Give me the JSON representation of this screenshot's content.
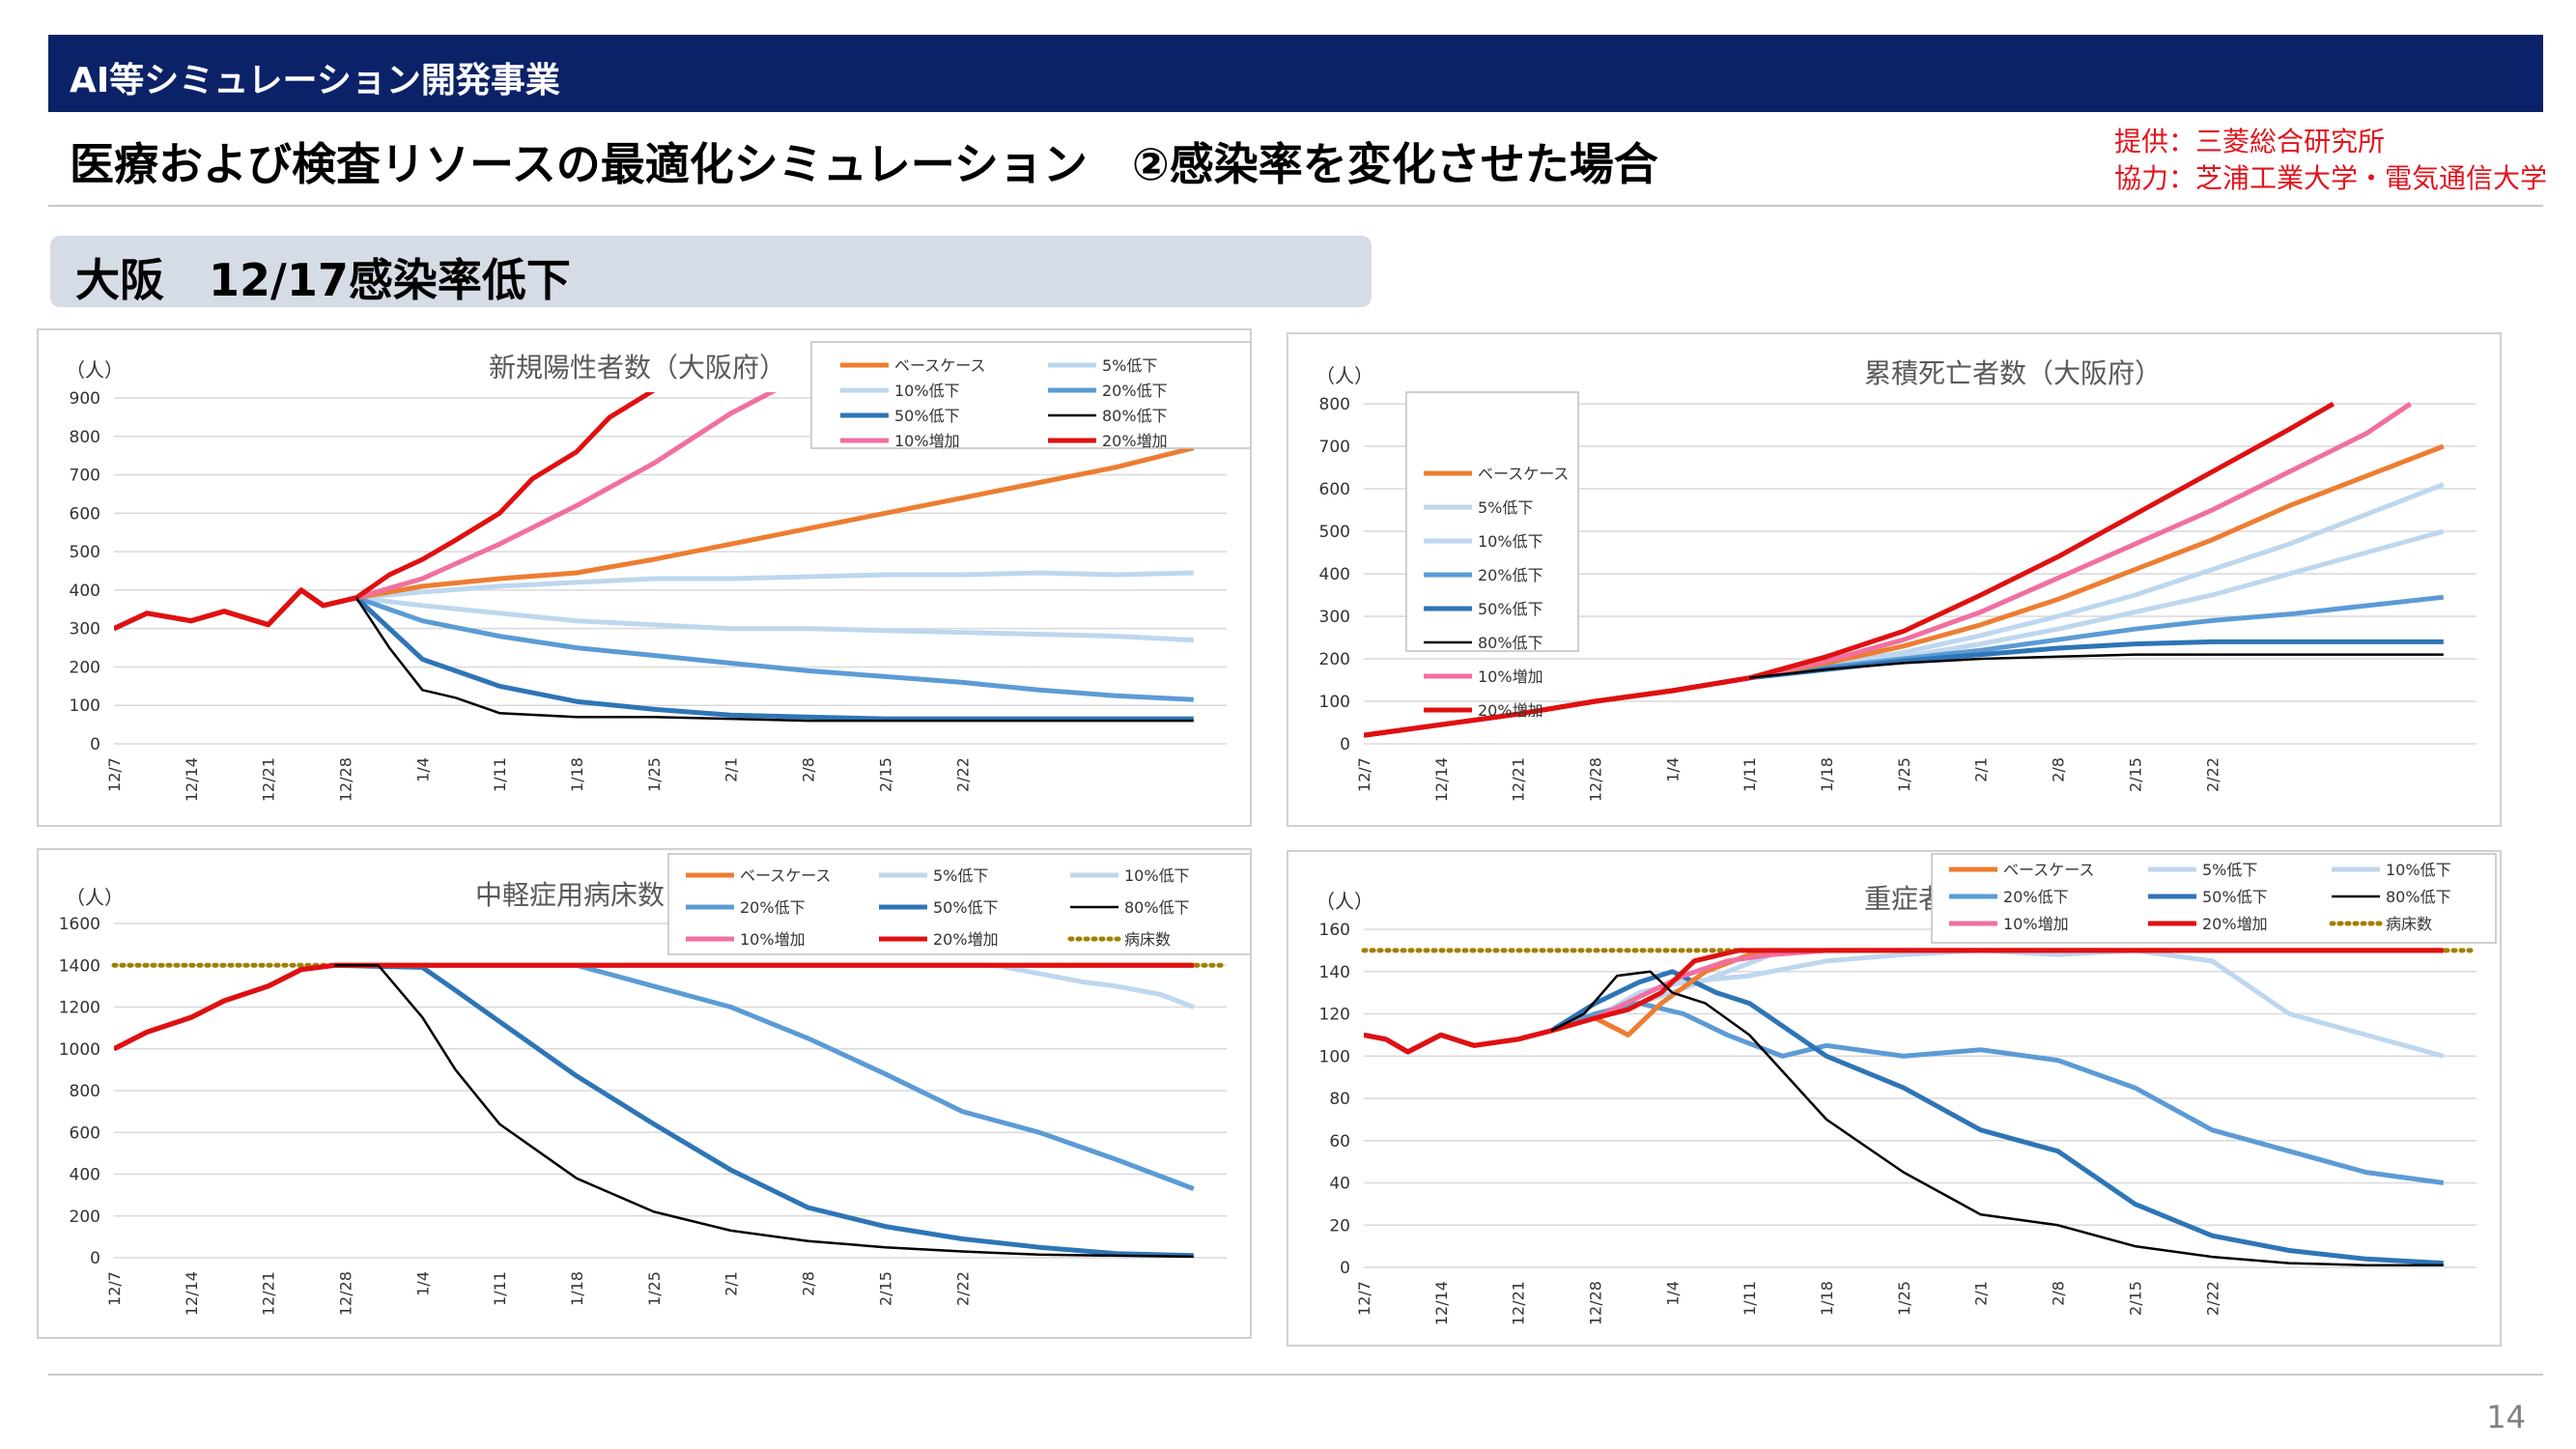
{
  "header": {
    "banner": "AI等シミュレーション開発事業",
    "title": "医療および検査リソースの最適化シミュレーション　②感染率を変化させた場合",
    "provider_line1": "提供：三菱総合研究所",
    "provider_line2": "協力：芝浦工業大学・電気通信大学",
    "section": "大阪　12/17感染率低下",
    "page_number": "14"
  },
  "colors": {
    "banner": "#0b2268",
    "provider_text": "#e2141c",
    "section_bg": "#d6dce5",
    "base": "#ed7d31",
    "p5": "#bdd7ee",
    "p10": "#bdd7ee",
    "p20": "#5b9bd5",
    "p50": "#2e75b6",
    "p80": "#000000",
    "inc10": "#f16fa0",
    "inc20": "#e01010",
    "beds": "#a08000"
  },
  "chart_data": [
    {
      "id": "new_cases",
      "type": "line",
      "title": "新規陽性者数（大阪府）",
      "unit_label": "（人）",
      "ylim": [
        0,
        900
      ],
      "yticks": [
        0,
        100,
        200,
        300,
        400,
        500,
        600,
        700,
        800,
        900
      ],
      "x_tick_labels": [
        "12/7",
        "12/14",
        "12/21",
        "12/28",
        "1/4",
        "1/11",
        "1/18",
        "1/25",
        "2/1",
        "2/8",
        "2/15",
        "2/22"
      ],
      "legend_rows": [
        [
          "ベースケース",
          "5%低下"
        ],
        [
          "10%低下",
          "20%低下"
        ],
        [
          "50%低下",
          "80%低下"
        ],
        [
          "10%増加",
          "20%増加"
        ]
      ],
      "series_anchor_days": [
        0,
        3,
        7,
        10,
        14,
        17,
        19,
        22
      ],
      "series_history": [
        300,
        340,
        320,
        345,
        310,
        400,
        360,
        380
      ],
      "series": [
        {
          "name": "ベースケース",
          "key": "base",
          "days": [
            22,
            28,
            35,
            42,
            49,
            56,
            63,
            70,
            77,
            84,
            91,
            98
          ],
          "values": [
            380,
            410,
            430,
            445,
            480,
            520,
            560,
            600,
            640,
            680,
            720,
            770
          ]
        },
        {
          "name": "5%低下",
          "key": "p5",
          "days": [
            22,
            28,
            35,
            42,
            49,
            56,
            63,
            70,
            77,
            84,
            91,
            98
          ],
          "values": [
            380,
            395,
            410,
            420,
            430,
            430,
            435,
            440,
            440,
            445,
            440,
            445
          ]
        },
        {
          "name": "10%低下",
          "key": "p10",
          "days": [
            22,
            28,
            35,
            42,
            49,
            56,
            63,
            70,
            77,
            84,
            91,
            98
          ],
          "values": [
            370,
            360,
            340,
            320,
            310,
            300,
            300,
            295,
            290,
            285,
            280,
            270
          ]
        },
        {
          "name": "20%低下",
          "key": "p20",
          "days": [
            22,
            28,
            35,
            42,
            49,
            56,
            63,
            70,
            77,
            84,
            91,
            98
          ],
          "values": [
            360,
            320,
            280,
            250,
            230,
            210,
            190,
            175,
            160,
            140,
            125,
            115
          ]
        },
        {
          "name": "50%低下",
          "key": "p50",
          "days": [
            22,
            28,
            35,
            42,
            49,
            56,
            63,
            70,
            77,
            84,
            91,
            98
          ],
          "values": [
            350,
            220,
            150,
            110,
            90,
            75,
            70,
            65,
            65,
            65,
            65,
            65
          ]
        },
        {
          "name": "80%低下",
          "key": "p80",
          "days": [
            22,
            25,
            28,
            31,
            35,
            42,
            49,
            56,
            63,
            70,
            77,
            84,
            91,
            98
          ],
          "values": [
            350,
            250,
            140,
            120,
            80,
            70,
            70,
            65,
            60,
            60,
            60,
            60,
            60,
            60
          ]
        },
        {
          "name": "10%増加",
          "key": "inc10",
          "days": [
            22,
            28,
            35,
            42,
            49,
            56,
            60
          ],
          "values": [
            380,
            430,
            520,
            620,
            730,
            860,
            920
          ]
        },
        {
          "name": "20%増加",
          "key": "inc20",
          "days": [
            22,
            25,
            28,
            31,
            35,
            38,
            42,
            45,
            49
          ],
          "values": [
            380,
            440,
            480,
            530,
            600,
            690,
            760,
            850,
            920
          ]
        }
      ]
    },
    {
      "id": "deaths",
      "type": "line",
      "title": "累積死亡者数（大阪府）",
      "unit_label": "（人）",
      "ylim": [
        0,
        800
      ],
      "yticks": [
        0,
        100,
        200,
        300,
        400,
        500,
        600,
        700,
        800
      ],
      "x_tick_labels": [
        "12/7",
        "12/14",
        "12/21",
        "12/28",
        "1/4",
        "1/11",
        "1/18",
        "1/25",
        "2/1",
        "2/8",
        "2/15",
        "2/22"
      ],
      "legend_rows": [
        [
          "ベースケース"
        ],
        [
          "5%低下"
        ],
        [
          "10%低下"
        ],
        [
          "20%低下"
        ],
        [
          "50%低下"
        ],
        [
          "80%低下"
        ],
        [
          "10%増加"
        ],
        [
          "20%増加"
        ]
      ],
      "series_anchor_days": [
        0,
        7,
        14,
        21,
        28,
        35
      ],
      "series_history": [
        20,
        45,
        70,
        100,
        125,
        155
      ],
      "series": [
        {
          "name": "ベースケース",
          "key": "base",
          "days": [
            35,
            42,
            49,
            56,
            63,
            70,
            77,
            84,
            91,
            98
          ],
          "values": [
            155,
            190,
            230,
            280,
            340,
            410,
            480,
            560,
            630,
            700
          ]
        },
        {
          "name": "5%低下",
          "key": "p5",
          "days": [
            35,
            42,
            49,
            56,
            63,
            70,
            77,
            84,
            91,
            98
          ],
          "values": [
            155,
            185,
            215,
            255,
            300,
            350,
            410,
            470,
            540,
            610
          ]
        },
        {
          "name": "10%低下",
          "key": "p10",
          "days": [
            35,
            42,
            49,
            56,
            63,
            70,
            77,
            84,
            91,
            98
          ],
          "values": [
            155,
            180,
            205,
            235,
            270,
            310,
            350,
            400,
            450,
            500
          ]
        },
        {
          "name": "20%低下",
          "key": "p20",
          "days": [
            35,
            42,
            49,
            56,
            63,
            70,
            77,
            84,
            91,
            98
          ],
          "values": [
            155,
            180,
            200,
            220,
            245,
            270,
            290,
            305,
            325,
            345
          ]
        },
        {
          "name": "50%低下",
          "key": "p50",
          "days": [
            35,
            42,
            49,
            56,
            63,
            70,
            77,
            84,
            91,
            98
          ],
          "values": [
            155,
            175,
            195,
            210,
            225,
            235,
            240,
            240,
            240,
            240
          ]
        },
        {
          "name": "80%低下",
          "key": "p80",
          "days": [
            35,
            42,
            49,
            56,
            63,
            70,
            77,
            84,
            91,
            98
          ],
          "values": [
            155,
            175,
            190,
            200,
            205,
            210,
            210,
            210,
            210,
            210
          ]
        },
        {
          "name": "10%増加",
          "key": "inc10",
          "days": [
            35,
            42,
            49,
            56,
            63,
            70,
            77,
            84,
            91,
            95
          ],
          "values": [
            155,
            195,
            245,
            310,
            390,
            470,
            550,
            640,
            730,
            800
          ]
        },
        {
          "name": "20%増加",
          "key": "inc20",
          "days": [
            35,
            42,
            49,
            56,
            63,
            70,
            77,
            84,
            88
          ],
          "values": [
            155,
            205,
            265,
            350,
            440,
            540,
            640,
            740,
            800
          ]
        }
      ]
    },
    {
      "id": "mild_beds",
      "type": "line",
      "title": "中軽症用病床数（大阪府）",
      "unit_label": "（人）",
      "ylim": [
        0,
        1600
      ],
      "yticks": [
        0,
        200,
        400,
        600,
        800,
        1000,
        1200,
        1400,
        1600
      ],
      "x_tick_labels": [
        "12/7",
        "12/14",
        "12/21",
        "12/28",
        "1/4",
        "1/11",
        "1/18",
        "1/25",
        "2/1",
        "2/8",
        "2/15",
        "2/22"
      ],
      "legend_rows": [
        [
          "ベースケース",
          "5%低下",
          "10%低下"
        ],
        [
          "20%低下",
          "50%低下",
          "80%低下"
        ],
        [
          "10%増加",
          "20%増加",
          "病床数"
        ]
      ],
      "bed_capacity": 1400,
      "series_anchor_days": [
        0,
        3,
        7,
        10,
        14,
        17,
        20
      ],
      "series_history": [
        1000,
        1080,
        1150,
        1230,
        1300,
        1380,
        1400
      ],
      "series": [
        {
          "name": "ベースケース",
          "key": "base",
          "days": [
            20,
            98
          ],
          "values": [
            1400,
            1400
          ]
        },
        {
          "name": "5%低下",
          "key": "p5",
          "days": [
            20,
            98
          ],
          "values": [
            1400,
            1400
          ]
        },
        {
          "name": "10%低下",
          "key": "p10",
          "days": [
            20,
            80,
            84,
            88,
            91,
            95,
            98
          ],
          "values": [
            1400,
            1400,
            1360,
            1320,
            1300,
            1260,
            1200
          ]
        },
        {
          "name": "20%低下",
          "key": "p20",
          "days": [
            20,
            42,
            49,
            56,
            63,
            70,
            77,
            84,
            91,
            98
          ],
          "values": [
            1400,
            1400,
            1300,
            1200,
            1050,
            880,
            700,
            600,
            470,
            330
          ]
        },
        {
          "name": "50%低下",
          "key": "p50",
          "days": [
            20,
            28,
            31,
            35,
            42,
            49,
            56,
            63,
            70,
            77,
            84,
            91,
            98
          ],
          "values": [
            1400,
            1390,
            1280,
            1130,
            870,
            640,
            420,
            240,
            150,
            90,
            50,
            20,
            10
          ]
        },
        {
          "name": "80%低下",
          "key": "p80",
          "days": [
            20,
            24,
            28,
            31,
            35,
            42,
            49,
            56,
            63,
            70,
            77,
            84,
            98
          ],
          "values": [
            1400,
            1400,
            1150,
            900,
            640,
            380,
            220,
            130,
            80,
            50,
            30,
            15,
            5
          ]
        },
        {
          "name": "10%増加",
          "key": "inc10",
          "days": [
            20,
            98
          ],
          "values": [
            1400,
            1400
          ]
        },
        {
          "name": "20%増加",
          "key": "inc20",
          "days": [
            20,
            98
          ],
          "values": [
            1400,
            1400
          ]
        }
      ]
    },
    {
      "id": "severe_beds",
      "type": "line",
      "title": "重症者病床数（大阪府）",
      "unit_label": "（人）",
      "ylim": [
        0,
        160
      ],
      "yticks": [
        0,
        20,
        40,
        60,
        80,
        100,
        120,
        140,
        160
      ],
      "x_tick_labels": [
        "12/7",
        "12/14",
        "12/21",
        "12/28",
        "1/4",
        "1/11",
        "1/18",
        "1/25",
        "2/1",
        "2/8",
        "2/15",
        "2/22"
      ],
      "legend_rows": [
        [
          "ベースケース",
          "5%低下",
          "10%低下"
        ],
        [
          "20%低下",
          "50%低下",
          "80%低下"
        ],
        [
          "10%増加",
          "20%増加",
          "病床数"
        ]
      ],
      "bed_capacity": 150,
      "series_anchor_days": [
        0,
        2,
        4,
        7,
        10,
        14,
        17
      ],
      "series_history": [
        110,
        108,
        102,
        110,
        105,
        108,
        112
      ],
      "series": [
        {
          "name": "ベースケース",
          "key": "base",
          "days": [
            17,
            21,
            24,
            27,
            31,
            35,
            42,
            98
          ],
          "values": [
            112,
            118,
            110,
            125,
            140,
            148,
            150,
            150
          ]
        },
        {
          "name": "5%低下",
          "key": "p5",
          "days": [
            17,
            21,
            25,
            29,
            33,
            37,
            42,
            98
          ],
          "values": [
            112,
            120,
            125,
            132,
            140,
            148,
            150,
            150
          ]
        },
        {
          "name": "10%低下",
          "key": "p10",
          "days": [
            17,
            21,
            25,
            29,
            35,
            42,
            49,
            56,
            63,
            70,
            77,
            84,
            91,
            98
          ],
          "values": [
            112,
            118,
            130,
            135,
            138,
            145,
            148,
            150,
            148,
            150,
            145,
            120,
            110,
            100
          ]
        },
        {
          "name": "20%低下",
          "key": "p20",
          "days": [
            17,
            21,
            25,
            29,
            33,
            38,
            42,
            49,
            56,
            63,
            70,
            77,
            84,
            91,
            98
          ],
          "values": [
            112,
            120,
            125,
            120,
            110,
            100,
            105,
            100,
            103,
            98,
            85,
            65,
            55,
            45,
            40
          ]
        },
        {
          "name": "50%低下",
          "key": "p50",
          "days": [
            17,
            21,
            25,
            28,
            32,
            35,
            42,
            49,
            56,
            63,
            70,
            77,
            84,
            91,
            98
          ],
          "values": [
            112,
            125,
            135,
            140,
            130,
            125,
            100,
            85,
            65,
            55,
            30,
            15,
            8,
            4,
            2
          ]
        },
        {
          "name": "80%低下",
          "key": "p80",
          "days": [
            17,
            20,
            23,
            26,
            28,
            31,
            35,
            42,
            49,
            56,
            63,
            70,
            77,
            84,
            91,
            98
          ],
          "values": [
            112,
            120,
            138,
            140,
            130,
            125,
            110,
            70,
            45,
            25,
            20,
            10,
            5,
            2,
            1,
            1
          ]
        },
        {
          "name": "10%増加",
          "key": "inc10",
          "days": [
            17,
            21,
            25,
            29,
            33,
            37,
            42,
            98
          ],
          "values": [
            112,
            118,
            128,
            138,
            145,
            148,
            150,
            150
          ]
        },
        {
          "name": "20%増加",
          "key": "inc20",
          "days": [
            17,
            21,
            24,
            27,
            30,
            34,
            98
          ],
          "values": [
            112,
            118,
            122,
            130,
            145,
            150,
            150
          ]
        }
      ]
    }
  ]
}
